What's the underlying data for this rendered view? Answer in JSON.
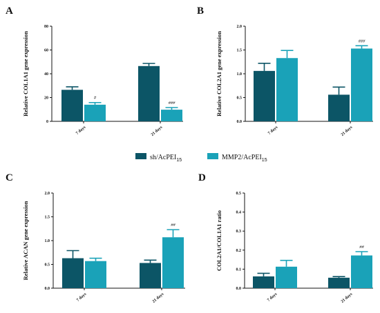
{
  "colors": {
    "series1": "#0c5566",
    "series2": "#1aa2b8"
  },
  "legend": [
    {
      "name": "sh/AcPEI",
      "sub": "15"
    },
    {
      "name": "MMP2/AcPEI",
      "sub": "15"
    }
  ],
  "chart_data": [
    {
      "panel": "A",
      "type": "bar",
      "ylabel": "Relative COL1A1 gene expression",
      "categories": [
        "7 days",
        "21 days"
      ],
      "ylim": [
        0,
        80
      ],
      "yticks": [
        0,
        20,
        40,
        60,
        80
      ],
      "series": [
        {
          "values": [
            26.5,
            46.5
          ],
          "errors": [
            2.5,
            2.2
          ]
        },
        {
          "values": [
            14.0,
            9.8
          ],
          "errors": [
            1.8,
            1.8
          ]
        }
      ],
      "annotations": [
        {
          "category": 0,
          "series": 1,
          "text": "#"
        },
        {
          "category": 1,
          "series": 1,
          "text": "###"
        }
      ]
    },
    {
      "panel": "B",
      "type": "bar",
      "ylabel": "Relative COL2A1 gene expression",
      "categories": [
        "7 days",
        "21 days"
      ],
      "ylim": [
        0,
        2.0
      ],
      "yticks": [
        "0.0",
        "0.5",
        "1.0",
        "1.5",
        "2.0"
      ],
      "series": [
        {
          "values": [
            1.06,
            0.56
          ],
          "errors": [
            0.16,
            0.16
          ]
        },
        {
          "values": [
            1.33,
            1.53
          ],
          "errors": [
            0.16,
            0.06
          ]
        }
      ],
      "annotations": [
        {
          "category": 1,
          "series": 1,
          "text": "###"
        }
      ]
    },
    {
      "panel": "C",
      "type": "bar",
      "ylabel": "Relative ACAN gene expression",
      "categories": [
        "7 days",
        "21 days"
      ],
      "ylim": [
        0,
        2.0
      ],
      "yticks": [
        "0.0",
        "0.5",
        "1.0",
        "1.5",
        "2.0"
      ],
      "series": [
        {
          "values": [
            0.63,
            0.53
          ],
          "errors": [
            0.16,
            0.06
          ]
        },
        {
          "values": [
            0.57,
            1.07
          ],
          "errors": [
            0.06,
            0.16
          ]
        }
      ],
      "annotations": [
        {
          "category": 1,
          "series": 1,
          "text": "##"
        }
      ]
    },
    {
      "panel": "D",
      "type": "bar",
      "ylabel": "COL2A1/COL1A1 ratio",
      "categories": [
        "7 days",
        "21 days"
      ],
      "ylim": [
        0,
        0.5
      ],
      "yticks": [
        "0.0",
        "0.1",
        "0.2",
        "0.3",
        "0.4",
        "0.5"
      ],
      "series": [
        {
          "values": [
            0.062,
            0.055
          ],
          "errors": [
            0.016,
            0.006
          ]
        },
        {
          "values": [
            0.113,
            0.172
          ],
          "errors": [
            0.033,
            0.02
          ]
        }
      ],
      "annotations": [
        {
          "category": 1,
          "series": 1,
          "text": "##"
        }
      ]
    }
  ]
}
